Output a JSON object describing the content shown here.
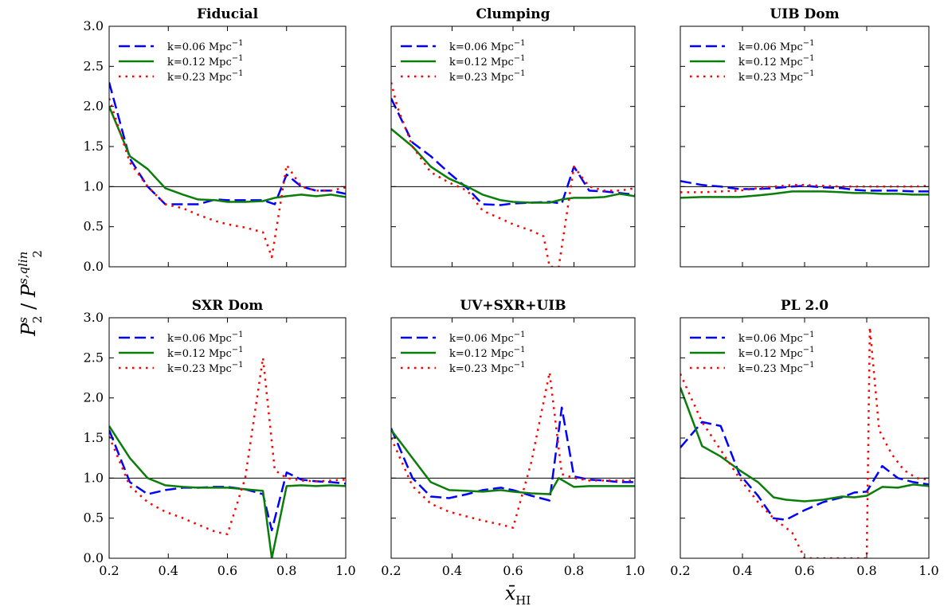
{
  "figure": {
    "ylabel": "P_2^s / P_2^{s,qlin}",
    "ylabel_parts": {
      "main": "P",
      "sup1": "s",
      "sub1": "2",
      "slash": " / ",
      "main2": "P",
      "sup2": "s,qlin",
      "sub2": "2"
    },
    "xlabel": "x̄_HI",
    "xlabel_parts": {
      "main": "x̄",
      "sub": "HI"
    },
    "colors": {
      "k006": "#0000ff",
      "k012": "#0a7d0a",
      "k023": "#ff0000",
      "reference": "#000000"
    },
    "legend": [
      {
        "label": "k=0.06 Mpc",
        "sup": "−1",
        "style": "dashed",
        "color_key": "k006"
      },
      {
        "label": "k=0.12 Mpc",
        "sup": "−1",
        "style": "solid",
        "color_key": "k012"
      },
      {
        "label": "k=0.23 Mpc",
        "sup": "−1",
        "style": "dotted",
        "color_key": "k023"
      }
    ],
    "x_ticks": [
      "0.2",
      "0.4",
      "0.6",
      "0.8",
      "1.0"
    ],
    "y_ticks": [
      "0.0",
      "0.5",
      "1.0",
      "1.5",
      "2.0",
      "2.5",
      "3.0"
    ]
  },
  "chart_data": [
    {
      "type": "line",
      "title": "Fiducial",
      "xlim": [
        0.2,
        1.0
      ],
      "ylim": [
        0.0,
        3.0
      ],
      "reference_y": 1.0,
      "legend_position": "upper-left",
      "series": [
        {
          "name": "k=0.06 Mpc^-1",
          "x": [
            0.2,
            0.27,
            0.33,
            0.39,
            0.45,
            0.5,
            0.56,
            0.6,
            0.66,
            0.72,
            0.76,
            0.8,
            0.85,
            0.9,
            0.95,
            1.0
          ],
          "y": [
            2.3,
            1.35,
            1.0,
            0.78,
            0.78,
            0.78,
            0.84,
            0.83,
            0.83,
            0.83,
            0.78,
            1.15,
            1.0,
            0.95,
            0.95,
            0.91
          ]
        },
        {
          "name": "k=0.12 Mpc^-1",
          "x": [
            0.2,
            0.27,
            0.33,
            0.39,
            0.45,
            0.5,
            0.56,
            0.6,
            0.66,
            0.72,
            0.76,
            0.8,
            0.85,
            0.9,
            0.95,
            1.0
          ],
          "y": [
            2.0,
            1.38,
            1.22,
            0.98,
            0.9,
            0.84,
            0.83,
            0.81,
            0.81,
            0.82,
            0.86,
            0.88,
            0.9,
            0.88,
            0.9,
            0.87
          ]
        },
        {
          "name": "k=0.23 Mpc^-1",
          "x": [
            0.2,
            0.27,
            0.33,
            0.39,
            0.45,
            0.5,
            0.56,
            0.6,
            0.66,
            0.72,
            0.75,
            0.8,
            0.85,
            0.9,
            0.95,
            1.0
          ],
          "y": [
            2.1,
            1.3,
            1.0,
            0.78,
            0.73,
            0.65,
            0.57,
            0.53,
            0.49,
            0.43,
            0.12,
            1.27,
            1.0,
            0.95,
            0.95,
            0.99
          ]
        }
      ]
    },
    {
      "type": "line",
      "title": "Clumping",
      "xlim": [
        0.2,
        1.0
      ],
      "ylim": [
        0.0,
        3.0
      ],
      "reference_y": 1.0,
      "legend_position": "upper-left",
      "series": [
        {
          "name": "k=0.06 Mpc^-1",
          "x": [
            0.2,
            0.27,
            0.33,
            0.39,
            0.45,
            0.5,
            0.56,
            0.6,
            0.66,
            0.72,
            0.76,
            0.8,
            0.85,
            0.9,
            0.95,
            1.0
          ],
          "y": [
            2.1,
            1.55,
            1.38,
            1.17,
            0.98,
            0.78,
            0.77,
            0.79,
            0.8,
            0.81,
            0.79,
            1.25,
            0.95,
            0.94,
            0.92,
            0.9
          ]
        },
        {
          "name": "k=0.12 Mpc^-1",
          "x": [
            0.2,
            0.27,
            0.33,
            0.39,
            0.45,
            0.5,
            0.56,
            0.6,
            0.66,
            0.72,
            0.76,
            0.8,
            0.85,
            0.9,
            0.95,
            1.0
          ],
          "y": [
            1.72,
            1.5,
            1.25,
            1.1,
            1.0,
            0.9,
            0.83,
            0.81,
            0.8,
            0.8,
            0.84,
            0.86,
            0.86,
            0.87,
            0.91,
            0.88
          ]
        },
        {
          "name": "k=0.23 Mpc^-1",
          "x": [
            0.2,
            0.22,
            0.27,
            0.33,
            0.39,
            0.45,
            0.5,
            0.56,
            0.6,
            0.66,
            0.7,
            0.72,
            0.75,
            0.8,
            0.85,
            0.9,
            0.95,
            1.0
          ],
          "y": [
            2.3,
            2.0,
            1.5,
            1.18,
            1.05,
            0.95,
            0.7,
            0.6,
            0.53,
            0.45,
            0.38,
            0.0,
            0.0,
            1.25,
            1.0,
            0.95,
            0.95,
            0.98
          ]
        }
      ]
    },
    {
      "type": "line",
      "title": "UIB Dom",
      "xlim": [
        0.2,
        1.0
      ],
      "ylim": [
        0.0,
        3.0
      ],
      "reference_y": 1.0,
      "legend_position": "upper-left",
      "series": [
        {
          "name": "k=0.06 Mpc^-1",
          "x": [
            0.2,
            0.27,
            0.33,
            0.39,
            0.45,
            0.5,
            0.56,
            0.6,
            0.66,
            0.72,
            0.76,
            0.8,
            0.85,
            0.9,
            0.95,
            1.0
          ],
          "y": [
            1.07,
            1.02,
            1.0,
            0.97,
            0.97,
            0.98,
            1.0,
            1.01,
            0.99,
            0.98,
            0.96,
            0.95,
            0.95,
            0.95,
            0.94,
            0.94
          ]
        },
        {
          "name": "k=0.12 Mpc^-1",
          "x": [
            0.2,
            0.27,
            0.33,
            0.39,
            0.45,
            0.5,
            0.56,
            0.6,
            0.66,
            0.72,
            0.76,
            0.8,
            0.85,
            0.9,
            0.95,
            1.0
          ],
          "y": [
            0.86,
            0.87,
            0.87,
            0.87,
            0.89,
            0.91,
            0.94,
            0.94,
            0.94,
            0.93,
            0.92,
            0.92,
            0.91,
            0.91,
            0.9,
            0.9
          ]
        },
        {
          "name": "k=0.23 Mpc^-1",
          "x": [
            0.2,
            0.27,
            0.33,
            0.39,
            0.45,
            0.5,
            0.56,
            0.6,
            0.66,
            0.72,
            0.76,
            0.8,
            0.85,
            0.9,
            0.95,
            1.0
          ],
          "y": [
            0.93,
            0.93,
            0.94,
            0.95,
            0.98,
            1.0,
            1.02,
            1.02,
            1.01,
            1.0,
            1.0,
            1.0,
            1.0,
            1.0,
            1.0,
            1.01
          ]
        }
      ]
    },
    {
      "type": "line",
      "title": "SXR Dom",
      "xlim": [
        0.2,
        1.0
      ],
      "ylim": [
        0.0,
        3.0
      ],
      "reference_y": 1.0,
      "legend_position": "upper-left",
      "series": [
        {
          "name": "k=0.06 Mpc^-1",
          "x": [
            0.2,
            0.27,
            0.33,
            0.39,
            0.45,
            0.5,
            0.56,
            0.6,
            0.66,
            0.72,
            0.75,
            0.8,
            0.85,
            0.9,
            0.95,
            1.0
          ],
          "y": [
            1.6,
            0.95,
            0.8,
            0.85,
            0.88,
            0.88,
            0.89,
            0.89,
            0.86,
            0.8,
            0.35,
            1.07,
            0.98,
            0.96,
            0.95,
            0.93
          ]
        },
        {
          "name": "k=0.12 Mpc^-1",
          "x": [
            0.2,
            0.27,
            0.33,
            0.39,
            0.45,
            0.5,
            0.56,
            0.6,
            0.66,
            0.72,
            0.75,
            0.8,
            0.85,
            0.9,
            0.95,
            1.0
          ],
          "y": [
            1.65,
            1.25,
            1.0,
            0.91,
            0.89,
            0.88,
            0.88,
            0.88,
            0.86,
            0.84,
            0.0,
            0.9,
            0.91,
            0.9,
            0.91,
            0.9
          ]
        },
        {
          "name": "k=0.23 Mpc^-1",
          "x": [
            0.2,
            0.27,
            0.33,
            0.39,
            0.45,
            0.5,
            0.56,
            0.6,
            0.66,
            0.72,
            0.76,
            0.8,
            0.85,
            0.9,
            0.95,
            1.0
          ],
          "y": [
            1.52,
            0.9,
            0.7,
            0.58,
            0.5,
            0.42,
            0.33,
            0.3,
            1.0,
            2.5,
            1.1,
            1.0,
            0.97,
            0.96,
            0.97,
            0.98
          ]
        }
      ]
    },
    {
      "type": "line",
      "title": "UV+SXR+UIB",
      "xlim": [
        0.2,
        1.0
      ],
      "ylim": [
        0.0,
        3.0
      ],
      "reference_y": 1.0,
      "legend_position": "upper-left",
      "series": [
        {
          "name": "k=0.06 Mpc^-1",
          "x": [
            0.2,
            0.27,
            0.33,
            0.39,
            0.45,
            0.5,
            0.56,
            0.6,
            0.66,
            0.72,
            0.76,
            0.8,
            0.85,
            0.9,
            0.95,
            1.0
          ],
          "y": [
            1.62,
            1.0,
            0.77,
            0.75,
            0.8,
            0.85,
            0.88,
            0.85,
            0.78,
            0.72,
            1.88,
            1.02,
            0.98,
            0.97,
            0.95,
            0.95
          ]
        },
        {
          "name": "k=0.12 Mpc^-1",
          "x": [
            0.2,
            0.27,
            0.33,
            0.39,
            0.45,
            0.5,
            0.56,
            0.6,
            0.66,
            0.72,
            0.75,
            0.8,
            0.85,
            0.9,
            0.95,
            1.0
          ],
          "y": [
            1.6,
            1.25,
            0.95,
            0.85,
            0.84,
            0.83,
            0.85,
            0.83,
            0.81,
            0.8,
            1.0,
            0.89,
            0.9,
            0.9,
            0.9,
            0.9
          ]
        },
        {
          "name": "k=0.23 Mpc^-1",
          "x": [
            0.2,
            0.27,
            0.33,
            0.39,
            0.45,
            0.5,
            0.56,
            0.6,
            0.66,
            0.72,
            0.76,
            0.8,
            0.85,
            0.9,
            0.95,
            1.0
          ],
          "y": [
            1.5,
            0.9,
            0.68,
            0.58,
            0.52,
            0.47,
            0.42,
            0.38,
            1.2,
            2.32,
            1.05,
            1.0,
            0.97,
            0.97,
            0.97,
            0.97
          ]
        }
      ]
    },
    {
      "type": "line",
      "title": "PL 2.0",
      "xlim": [
        0.2,
        1.0
      ],
      "ylim": [
        0.0,
        3.0
      ],
      "reference_y": 1.0,
      "legend_position": "upper-left",
      "series": [
        {
          "name": "k=0.06 Mpc^-1",
          "x": [
            0.2,
            0.27,
            0.33,
            0.39,
            0.45,
            0.5,
            0.54,
            0.6,
            0.66,
            0.72,
            0.76,
            0.8,
            0.85,
            0.9,
            0.95,
            1.0
          ],
          "y": [
            1.38,
            1.7,
            1.65,
            1.05,
            0.78,
            0.5,
            0.48,
            0.6,
            0.7,
            0.76,
            0.82,
            0.83,
            1.15,
            1.0,
            0.95,
            0.92
          ]
        },
        {
          "name": "k=0.12 Mpc^-1",
          "x": [
            0.2,
            0.27,
            0.33,
            0.39,
            0.45,
            0.5,
            0.54,
            0.6,
            0.66,
            0.72,
            0.76,
            0.8,
            0.85,
            0.9,
            0.95,
            1.0
          ],
          "y": [
            2.13,
            1.4,
            1.27,
            1.1,
            0.95,
            0.76,
            0.73,
            0.71,
            0.73,
            0.77,
            0.76,
            0.78,
            0.89,
            0.88,
            0.92,
            0.9
          ]
        },
        {
          "name": "k=0.23 Mpc^-1",
          "x": [
            0.2,
            0.27,
            0.33,
            0.39,
            0.45,
            0.5,
            0.56,
            0.6,
            0.66,
            0.72,
            0.76,
            0.8,
            0.81,
            0.84,
            0.88,
            0.92,
            0.96,
            1.0
          ],
          "y": [
            2.3,
            1.7,
            1.35,
            1.0,
            0.7,
            0.5,
            0.32,
            0.0,
            0.0,
            0.0,
            0.0,
            0.0,
            2.88,
            1.6,
            1.3,
            1.1,
            1.0,
            0.98
          ]
        }
      ]
    }
  ]
}
